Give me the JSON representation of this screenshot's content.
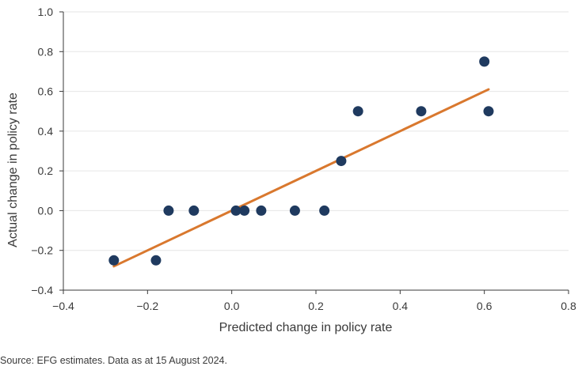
{
  "chart_data": {
    "type": "scatter",
    "xlabel": "Predicted change in policy rate",
    "ylabel": "Actual change in policy rate",
    "xlim": [
      -0.4,
      0.8
    ],
    "ylim": [
      -0.4,
      1.0
    ],
    "x_ticks": [
      -0.4,
      -0.2,
      0.0,
      0.2,
      0.4,
      0.6,
      0.8
    ],
    "y_ticks": [
      -0.4,
      -0.2,
      0.0,
      0.2,
      0.4,
      0.6,
      0.8,
      1.0
    ],
    "x_tick_labels": [
      "−0.4",
      "−0.2",
      "0.0",
      "0.2",
      "0.4",
      "0.6",
      "0.8"
    ],
    "y_tick_labels": [
      "−0.4",
      "−0.2",
      "0.0",
      "0.2",
      "0.4",
      "0.6",
      "0.8",
      "1.0"
    ],
    "grid": "horizontal",
    "points": [
      {
        "x": -0.28,
        "y": -0.25
      },
      {
        "x": -0.18,
        "y": -0.25
      },
      {
        "x": -0.15,
        "y": 0.0
      },
      {
        "x": -0.09,
        "y": 0.0
      },
      {
        "x": 0.01,
        "y": 0.0
      },
      {
        "x": 0.03,
        "y": 0.0
      },
      {
        "x": 0.07,
        "y": 0.0
      },
      {
        "x": 0.15,
        "y": 0.0
      },
      {
        "x": 0.22,
        "y": 0.0
      },
      {
        "x": 0.26,
        "y": 0.25
      },
      {
        "x": 0.3,
        "y": 0.5
      },
      {
        "x": 0.45,
        "y": 0.5
      },
      {
        "x": 0.6,
        "y": 0.75
      },
      {
        "x": 0.61,
        "y": 0.5
      }
    ],
    "trendline": {
      "x": [
        -0.28,
        0.61
      ],
      "y": [
        -0.28,
        0.61
      ]
    },
    "colors": {
      "points": "#1f3a5f",
      "trendline": "#d9782e",
      "grid": "#e6e6e6",
      "axis": "#3a3a3a"
    }
  },
  "source_note": "Source: EFG estimates. Data as at 15 August 2024."
}
